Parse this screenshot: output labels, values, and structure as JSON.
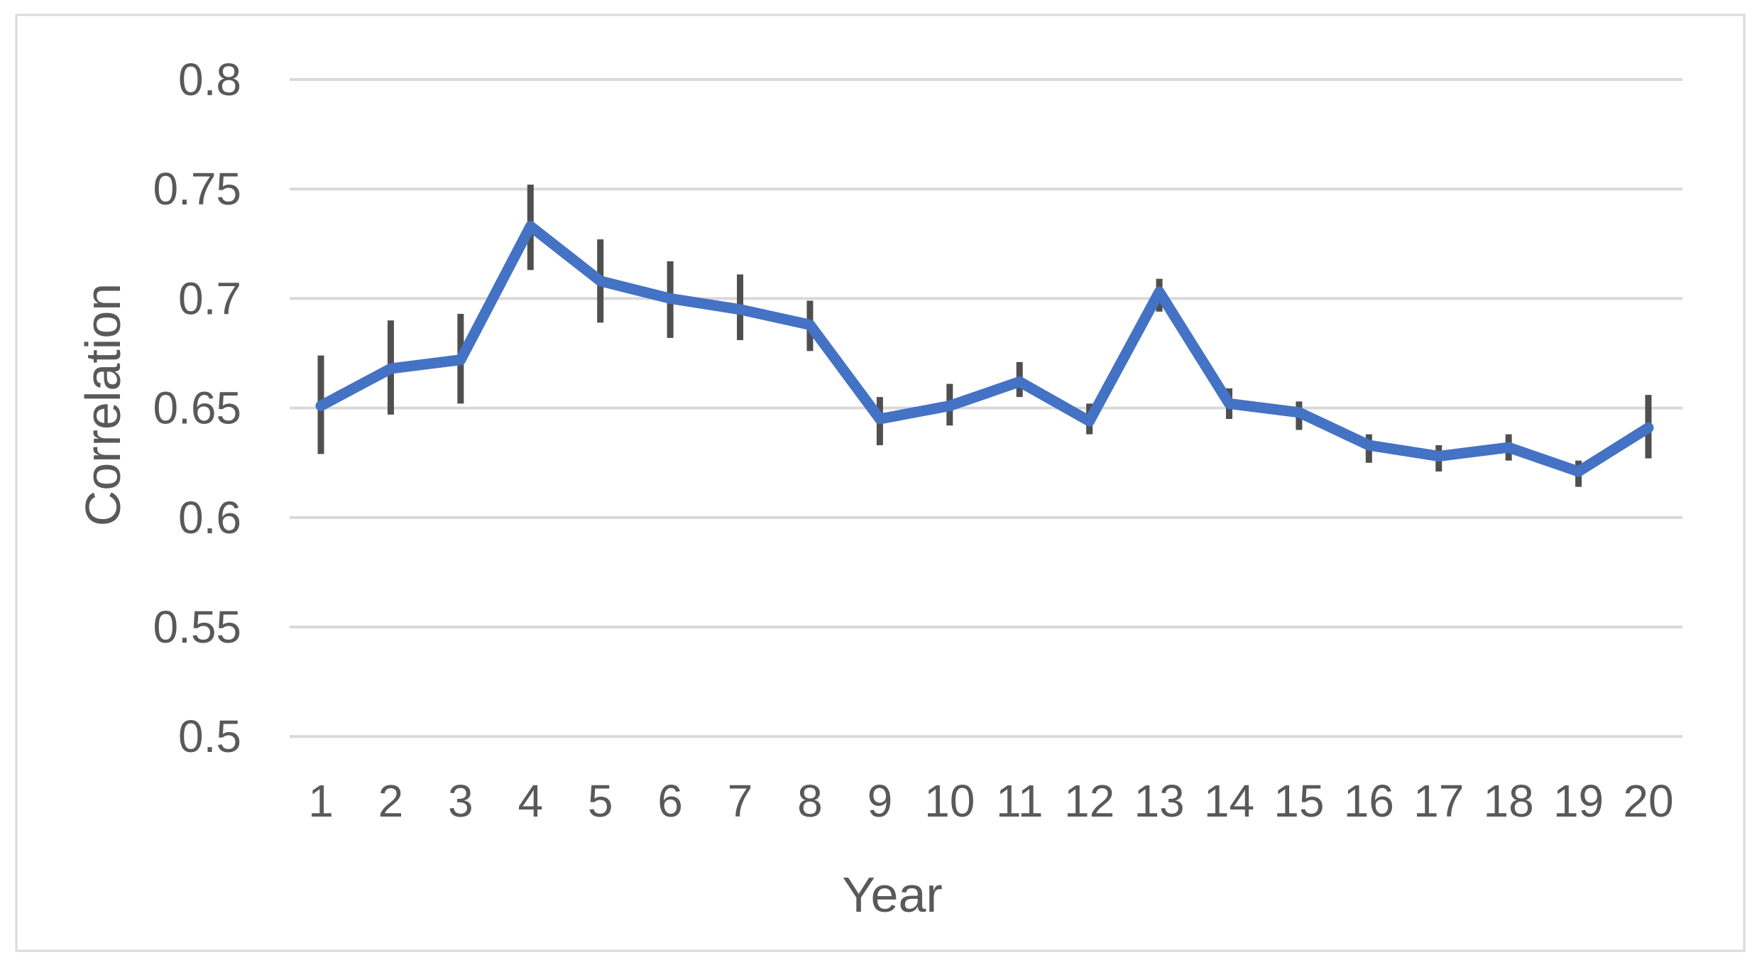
{
  "chart_data": {
    "type": "line",
    "title": "",
    "xlabel": "Year",
    "ylabel": "Correlation",
    "categories": [
      1,
      2,
      3,
      4,
      5,
      6,
      7,
      8,
      9,
      10,
      11,
      12,
      13,
      14,
      15,
      16,
      17,
      18,
      19,
      20
    ],
    "series": [
      {
        "name": "Correlation",
        "values": [
          0.651,
          0.668,
          0.672,
          0.733,
          0.708,
          0.7,
          0.695,
          0.688,
          0.645,
          0.651,
          0.662,
          0.644,
          0.703,
          0.652,
          0.648,
          0.633,
          0.628,
          0.632,
          0.621,
          0.641
        ],
        "error_low": [
          0.629,
          0.647,
          0.652,
          0.713,
          0.689,
          0.682,
          0.681,
          0.676,
          0.633,
          0.642,
          0.655,
          0.638,
          0.694,
          0.645,
          0.64,
          0.625,
          0.621,
          0.626,
          0.614,
          0.627
        ],
        "error_high": [
          0.674,
          0.69,
          0.693,
          0.752,
          0.727,
          0.717,
          0.711,
          0.699,
          0.655,
          0.661,
          0.671,
          0.652,
          0.709,
          0.659,
          0.653,
          0.638,
          0.633,
          0.638,
          0.626,
          0.656
        ]
      }
    ],
    "ylim": [
      0.5,
      0.8
    ],
    "yticks": [
      0.8,
      0.75,
      0.7,
      0.65,
      0.6,
      0.55,
      0.5
    ],
    "ytick_labels": [
      "0.8",
      "0.75",
      "0.7",
      "0.65",
      "0.6",
      "0.55",
      "0.5"
    ],
    "xtick_labels": [
      "1",
      "2",
      "3",
      "4",
      "5",
      "6",
      "7",
      "8",
      "9",
      "10",
      "11",
      "12",
      "13",
      "14",
      "15",
      "16",
      "17",
      "18",
      "19",
      "20"
    ],
    "grid": "horizontal",
    "legend": "none",
    "error_bars": "vertical-no-caps",
    "colors": {
      "line": "#4472C4",
      "error_bar": "#4f4f4f",
      "gridline": "#D9D9D9",
      "text": "#595959",
      "border": "#D9D9D9",
      "background": "#FFFFFF"
    }
  }
}
